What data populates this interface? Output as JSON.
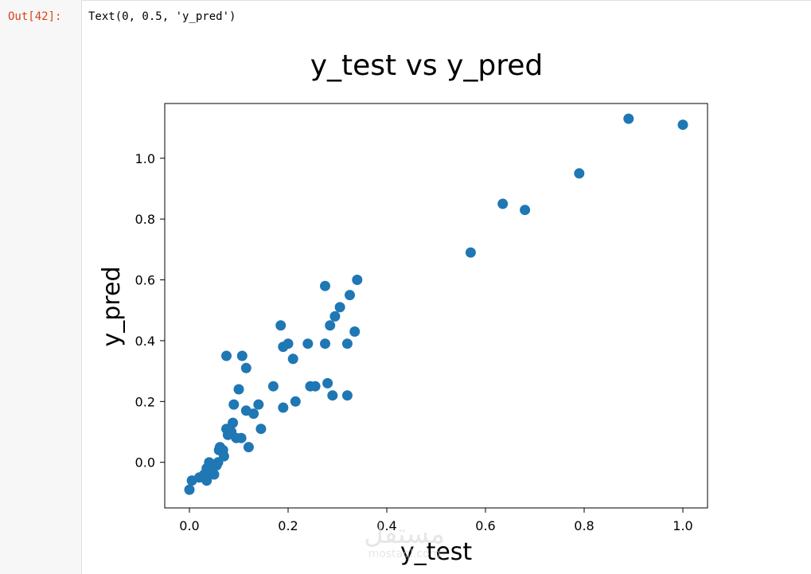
{
  "cell": {
    "prompt": "Out[42]:",
    "output_text": "Text(0, 0.5, 'y_pred')"
  },
  "watermark": {
    "text": "مستقل",
    "subtext": "mostaql.com"
  },
  "colors": {
    "point": "#1f77b4",
    "prompt": "#d84315"
  },
  "chart_data": {
    "type": "scatter",
    "title": "y_test vs y_pred",
    "xlabel": "y_test",
    "ylabel": "y_pred",
    "xlim": [
      -0.05,
      1.05
    ],
    "ylim": [
      -0.15,
      1.18
    ],
    "xticks": [
      0.0,
      0.2,
      0.4,
      0.6,
      0.8,
      1.0
    ],
    "xtick_labels": [
      "0.0",
      "0.2",
      "0.4",
      "0.6",
      "0.8",
      "1.0"
    ],
    "yticks": [
      0.0,
      0.2,
      0.4,
      0.6,
      0.8,
      1.0
    ],
    "ytick_labels": [
      "0.0",
      "0.2",
      "0.4",
      "0.6",
      "0.8",
      "1.0"
    ],
    "grid": false,
    "points": [
      [
        0.0,
        -0.09
      ],
      [
        0.005,
        -0.06
      ],
      [
        0.02,
        -0.05
      ],
      [
        0.03,
        -0.04
      ],
      [
        0.035,
        -0.06
      ],
      [
        0.035,
        -0.02
      ],
      [
        0.04,
        0.0
      ],
      [
        0.045,
        -0.03
      ],
      [
        0.05,
        -0.04
      ],
      [
        0.055,
        -0.01
      ],
      [
        0.058,
        0.0
      ],
      [
        0.06,
        0.04
      ],
      [
        0.062,
        0.05
      ],
      [
        0.068,
        0.04
      ],
      [
        0.07,
        0.02
      ],
      [
        0.075,
        0.11
      ],
      [
        0.078,
        0.09
      ],
      [
        0.075,
        0.35
      ],
      [
        0.085,
        0.1
      ],
      [
        0.088,
        0.13
      ],
      [
        0.09,
        0.19
      ],
      [
        0.095,
        0.08
      ],
      [
        0.1,
        0.24
      ],
      [
        0.105,
        0.08
      ],
      [
        0.107,
        0.35
      ],
      [
        0.115,
        0.31
      ],
      [
        0.115,
        0.17
      ],
      [
        0.12,
        0.05
      ],
      [
        0.13,
        0.16
      ],
      [
        0.14,
        0.19
      ],
      [
        0.145,
        0.11
      ],
      [
        0.17,
        0.25
      ],
      [
        0.185,
        0.45
      ],
      [
        0.19,
        0.18
      ],
      [
        0.19,
        0.38
      ],
      [
        0.2,
        0.39
      ],
      [
        0.21,
        0.34
      ],
      [
        0.215,
        0.2
      ],
      [
        0.24,
        0.39
      ],
      [
        0.245,
        0.25
      ],
      [
        0.255,
        0.25
      ],
      [
        0.275,
        0.58
      ],
      [
        0.275,
        0.39
      ],
      [
        0.28,
        0.26
      ],
      [
        0.285,
        0.45
      ],
      [
        0.29,
        0.22
      ],
      [
        0.295,
        0.48
      ],
      [
        0.305,
        0.51
      ],
      [
        0.32,
        0.22
      ],
      [
        0.32,
        0.39
      ],
      [
        0.325,
        0.55
      ],
      [
        0.335,
        0.43
      ],
      [
        0.34,
        0.6
      ],
      [
        0.57,
        0.69
      ],
      [
        0.635,
        0.85
      ],
      [
        0.68,
        0.83
      ],
      [
        0.79,
        0.95
      ],
      [
        0.89,
        1.13
      ],
      [
        1.0,
        1.11
      ]
    ]
  }
}
